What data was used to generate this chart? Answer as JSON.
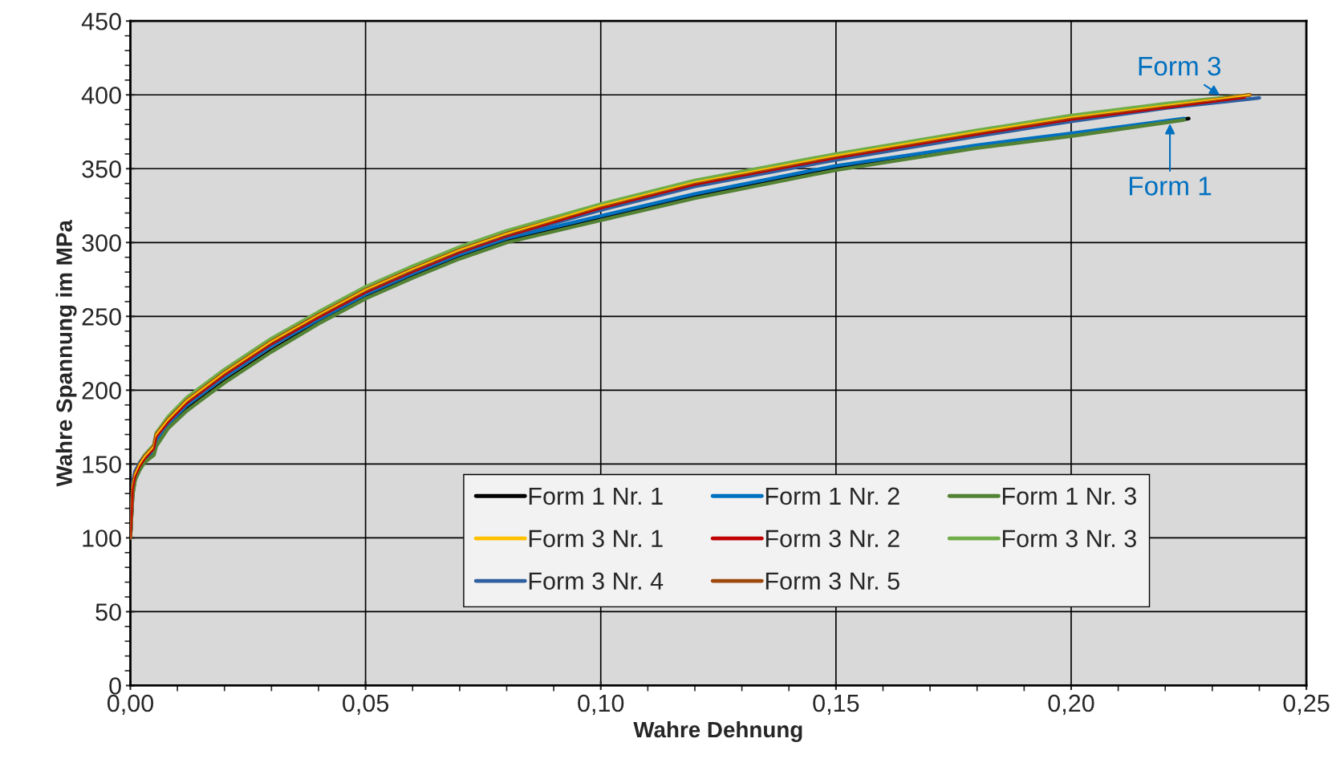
{
  "chart_data": {
    "type": "line",
    "xlabel": "Wahre Dehnung",
    "ylabel": "Wahre Spannung im MPa",
    "xlim": [
      0,
      0.25
    ],
    "ylim": [
      0,
      450
    ],
    "xticks": [
      {
        "value": 0,
        "label": "0,00"
      },
      {
        "value": 0.05,
        "label": "0,05"
      },
      {
        "value": 0.1,
        "label": "0,10"
      },
      {
        "value": 0.15,
        "label": "0,15"
      },
      {
        "value": 0.2,
        "label": "0,20"
      },
      {
        "value": 0.25,
        "label": "0,25"
      }
    ],
    "yticks": [
      0,
      50,
      100,
      150,
      200,
      250,
      300,
      350,
      400,
      450
    ],
    "grid": true,
    "legend": "bottom",
    "marker": "none",
    "line_style": "solid",
    "annotations": [
      {
        "text": "Form 3",
        "x": 0.232,
        "y": 399
      },
      {
        "text": "Form 1",
        "x": 0.221,
        "y": 382
      }
    ],
    "series": [
      {
        "name": "Form 1 Nr. 1",
        "color": "#000000",
        "x": [
          0,
          0.0005,
          0.001,
          0.002,
          0.003,
          0.005,
          0.0055,
          0.008,
          0.012,
          0.02,
          0.03,
          0.04,
          0.05,
          0.06,
          0.07,
          0.08,
          0.1,
          0.12,
          0.15,
          0.18,
          0.2,
          0.225
        ],
        "values": [
          100,
          130,
          140,
          147,
          152,
          157,
          163,
          175,
          187,
          206,
          227,
          246,
          263,
          277,
          290,
          301,
          316,
          331,
          350,
          365,
          373,
          384
        ]
      },
      {
        "name": "Form 1 Nr. 2",
        "color": "#0070c0",
        "x": [
          0,
          0.0005,
          0.001,
          0.002,
          0.003,
          0.005,
          0.0055,
          0.008,
          0.012,
          0.02,
          0.03,
          0.04,
          0.05,
          0.06,
          0.07,
          0.08,
          0.1,
          0.12,
          0.15,
          0.18,
          0.2,
          0.224
        ],
        "values": [
          100,
          134,
          142,
          149,
          154,
          159,
          165,
          177,
          190,
          209,
          230,
          248,
          265,
          279,
          292,
          303,
          318,
          333,
          352,
          366,
          374,
          384
        ]
      },
      {
        "name": "Form 1 Nr. 3",
        "color": "#548235",
        "x": [
          0,
          0.0005,
          0.001,
          0.002,
          0.003,
          0.005,
          0.0055,
          0.008,
          0.012,
          0.02,
          0.03,
          0.04,
          0.05,
          0.06,
          0.07,
          0.08,
          0.1,
          0.12,
          0.15,
          0.18,
          0.2,
          0.224
        ],
        "values": [
          100,
          129,
          139,
          146,
          151,
          156,
          162,
          174,
          186,
          205,
          226,
          245,
          262,
          276,
          289,
          300,
          315,
          330,
          349,
          364,
          372,
          383
        ]
      },
      {
        "name": "Form 3 Nr. 1",
        "color": "#ffc000",
        "x": [
          0,
          0.0005,
          0.001,
          0.002,
          0.003,
          0.005,
          0.0055,
          0.008,
          0.012,
          0.02,
          0.03,
          0.04,
          0.05,
          0.06,
          0.07,
          0.08,
          0.1,
          0.12,
          0.15,
          0.18,
          0.2,
          0.22,
          0.238
        ],
        "values": [
          100,
          135,
          143,
          150,
          155,
          162,
          170,
          180,
          193,
          212,
          233,
          251,
          268,
          282,
          295,
          306,
          325,
          341,
          359,
          375,
          385,
          393,
          400
        ]
      },
      {
        "name": "Form 3 Nr. 2",
        "color": "#c00000",
        "x": [
          0,
          0.0005,
          0.001,
          0.002,
          0.003,
          0.005,
          0.0055,
          0.008,
          0.012,
          0.02,
          0.03,
          0.04,
          0.05,
          0.06,
          0.07,
          0.08,
          0.1,
          0.12,
          0.15,
          0.18,
          0.2,
          0.22,
          0.237
        ],
        "values": [
          100,
          133,
          141,
          148,
          153,
          160,
          168,
          178,
          191,
          210,
          231,
          249,
          266,
          280,
          293,
          304,
          323,
          339,
          357,
          373,
          383,
          391,
          398
        ]
      },
      {
        "name": "Form 3 Nr. 3",
        "color": "#70ad47",
        "x": [
          0,
          0.0005,
          0.001,
          0.002,
          0.003,
          0.005,
          0.0055,
          0.008,
          0.012,
          0.02,
          0.03,
          0.04,
          0.05,
          0.06,
          0.07,
          0.08,
          0.1,
          0.12,
          0.15,
          0.18,
          0.2,
          0.22,
          0.238
        ],
        "values": [
          100,
          136,
          144,
          151,
          156,
          163,
          171,
          182,
          195,
          214,
          235,
          253,
          270,
          284,
          297,
          308,
          326,
          342,
          360,
          376,
          386,
          394,
          400
        ]
      },
      {
        "name": "Form 3 Nr. 4",
        "color": "#2e5f9e",
        "x": [
          0,
          0.0005,
          0.001,
          0.002,
          0.003,
          0.005,
          0.0055,
          0.008,
          0.012,
          0.02,
          0.03,
          0.04,
          0.05,
          0.06,
          0.07,
          0.08,
          0.1,
          0.12,
          0.15,
          0.18,
          0.2,
          0.22,
          0.24
        ],
        "values": [
          100,
          138,
          145,
          151,
          155,
          161,
          168,
          178,
          191,
          210,
          231,
          249,
          266,
          280,
          293,
          304,
          322,
          338,
          356,
          372,
          382,
          391,
          398
        ]
      },
      {
        "name": "Form 3 Nr. 5",
        "color": "#9e480e",
        "x": [
          0,
          0.0005,
          0.001,
          0.002,
          0.003,
          0.005,
          0.0055,
          0.008,
          0.012,
          0.02,
          0.03,
          0.04,
          0.05,
          0.06,
          0.07,
          0.08,
          0.1,
          0.12,
          0.15,
          0.18,
          0.2,
          0.22,
          0.238
        ],
        "values": [
          100,
          135,
          143,
          150,
          155,
          162,
          170,
          180,
          193,
          212,
          233,
          251,
          268,
          282,
          295,
          306,
          324,
          340,
          358,
          374,
          384,
          392,
          400
        ]
      }
    ]
  }
}
